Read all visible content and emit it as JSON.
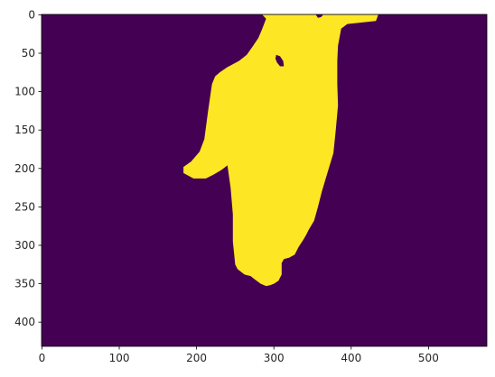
{
  "chart_data": {
    "type": "heatmap",
    "title": "",
    "xlabel": "",
    "ylabel": "",
    "xlim": [
      -0.5,
      575.5
    ],
    "ylim": [
      431.5,
      -0.5
    ],
    "x_ticks": [
      0,
      100,
      200,
      300,
      400,
      500
    ],
    "y_ticks": [
      0,
      50,
      100,
      150,
      200,
      250,
      300,
      350,
      400
    ],
    "x_tick_labels": [
      "0",
      "100",
      "200",
      "300",
      "400",
      "500"
    ],
    "y_tick_labels": [
      "0",
      "50",
      "100",
      "150",
      "200",
      "250",
      "300",
      "350",
      "400"
    ],
    "grid": false,
    "colormap": "viridis",
    "background_color": "#440154",
    "foreground_color": "#fde725",
    "mask_values": "binary mask: 0 = background, 1 = hand region",
    "mask_outline": [
      [
        285,
        0
      ],
      [
        435,
        0
      ],
      [
        432,
        8
      ],
      [
        395,
        12
      ],
      [
        387,
        18
      ],
      [
        383,
        40
      ],
      [
        382,
        60
      ],
      [
        382,
        90
      ],
      [
        383,
        118
      ],
      [
        380,
        150
      ],
      [
        377,
        180
      ],
      [
        368,
        210
      ],
      [
        362,
        230
      ],
      [
        357,
        250
      ],
      [
        352,
        268
      ],
      [
        345,
        280
      ],
      [
        342,
        286
      ],
      [
        338,
        293
      ],
      [
        332,
        302
      ],
      [
        327,
        312
      ],
      [
        320,
        316
      ],
      [
        313,
        318
      ],
      [
        310,
        323
      ],
      [
        310,
        338
      ],
      [
        306,
        346
      ],
      [
        300,
        350
      ],
      [
        295,
        352
      ],
      [
        290,
        353
      ],
      [
        283,
        350
      ],
      [
        276,
        345
      ],
      [
        270,
        340
      ],
      [
        262,
        338
      ],
      [
        258,
        335
      ],
      [
        253,
        331
      ],
      [
        250,
        325
      ],
      [
        247,
        295
      ],
      [
        247,
        260
      ],
      [
        244,
        225
      ],
      [
        240,
        196
      ],
      [
        232,
        202
      ],
      [
        222,
        208
      ],
      [
        212,
        213
      ],
      [
        196,
        213
      ],
      [
        183,
        206
      ],
      [
        183,
        198
      ],
      [
        193,
        191
      ],
      [
        204,
        178
      ],
      [
        210,
        162
      ],
      [
        212,
        147
      ],
      [
        215,
        125
      ],
      [
        220,
        90
      ],
      [
        224,
        80
      ],
      [
        230,
        75
      ],
      [
        240,
        68
      ],
      [
        255,
        60
      ],
      [
        265,
        52
      ],
      [
        272,
        42
      ],
      [
        280,
        30
      ],
      [
        285,
        18
      ],
      [
        290,
        5
      ]
    ],
    "mask_holes": [
      [
        [
          303,
          52
        ],
        [
          308,
          54
        ],
        [
          312,
          60
        ],
        [
          313,
          67
        ],
        [
          308,
          67
        ],
        [
          304,
          62
        ],
        [
          302,
          57
        ]
      ]
    ],
    "mask_notches": [
      [
        [
          354,
          -0.5
        ],
        [
          364,
          -0.5
        ],
        [
          361,
          3
        ],
        [
          357,
          4
        ]
      ]
    ]
  }
}
